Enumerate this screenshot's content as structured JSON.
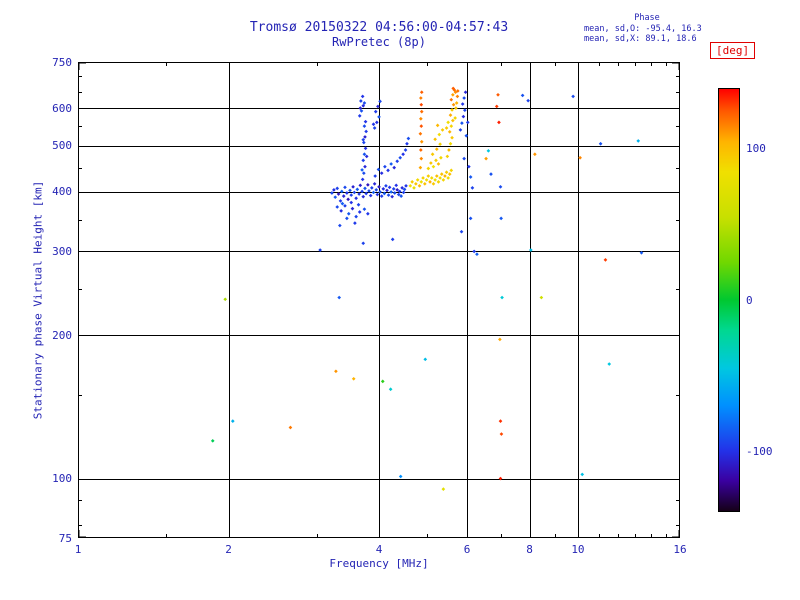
{
  "title": "Tromsø 20150322 04:56:00-04:57:43",
  "subtitle": "RwPretec (8p)",
  "stats": {
    "header": "Phase",
    "line_o": "mean, sd,O: -95.4, 16.3",
    "line_x": "mean, sd,X:  89.1, 18.6"
  },
  "colors": {
    "annotation_text": "#2424b4",
    "axis": "#000000",
    "deg_label": "#e00000",
    "background": "#ffffff"
  },
  "chart_data": {
    "type": "scatter",
    "title": "Tromsø 20150322 04:56:00-04:57:43",
    "subtitle": "RwPretec (8p)",
    "xlabel": "Frequency [MHz]",
    "ylabel": "Stationary phase Virtual Height [km]",
    "x_scale": "log",
    "y_scale": "log",
    "xlim": [
      1,
      16
    ],
    "ylim": [
      75,
      750
    ],
    "x_major_ticks": [
      1,
      2,
      4,
      6,
      8,
      10,
      16
    ],
    "x_grid": [
      2,
      4,
      6,
      8,
      10
    ],
    "x_minor_ticks": [
      1.5,
      3,
      5,
      7,
      9,
      11,
      12,
      13,
      14,
      15
    ],
    "y_major_ticks": [
      75,
      100,
      200,
      300,
      400,
      500,
      600,
      750
    ],
    "y_grid": [
      100,
      200,
      300,
      400,
      500,
      600
    ],
    "y_minor_ticks": [
      80,
      90,
      150,
      250,
      350,
      450,
      550,
      650,
      700
    ],
    "grid": true,
    "colorbar": {
      "label": "[deg]",
      "min": -140,
      "max": 140,
      "tick_values": [
        100,
        0,
        -100
      ],
      "stops": [
        [
          -140,
          "#150018"
        ],
        [
          -120,
          "#3a00a0"
        ],
        [
          -100,
          "#2332e8"
        ],
        [
          -70,
          "#0090ff"
        ],
        [
          -45,
          "#00c8e0"
        ],
        [
          -20,
          "#00d890"
        ],
        [
          0,
          "#00c830"
        ],
        [
          25,
          "#70d800"
        ],
        [
          55,
          "#c8e000"
        ],
        [
          85,
          "#f0e000"
        ],
        [
          105,
          "#ffb400"
        ],
        [
          125,
          "#ff5a00"
        ],
        [
          140,
          "#ff0000"
        ]
      ]
    },
    "points_format": [
      "freq_mhz",
      "height_km",
      "phase_deg"
    ],
    "points": [
      [
        3.22,
        398,
        -92
      ],
      [
        3.25,
        404,
        -101
      ],
      [
        3.27,
        390,
        -88
      ],
      [
        3.3,
        407,
        -95
      ],
      [
        3.32,
        396,
        -110
      ],
      [
        3.35,
        383,
        -97
      ],
      [
        3.37,
        401,
        -85
      ],
      [
        3.4,
        392,
        -104
      ],
      [
        3.42,
        409,
        -93
      ],
      [
        3.45,
        398,
        -99
      ],
      [
        3.47,
        386,
        -112
      ],
      [
        3.5,
        403,
        -90
      ],
      [
        3.52,
        394,
        -96
      ],
      [
        3.55,
        410,
        -106
      ],
      [
        3.57,
        399,
        -94
      ],
      [
        3.6,
        388,
        -101
      ],
      [
        3.62,
        405,
        -87
      ],
      [
        3.65,
        396,
        -98
      ],
      [
        3.67,
        413,
        -108
      ],
      [
        3.7,
        401,
        -95
      ],
      [
        3.72,
        391,
        -103
      ],
      [
        3.75,
        407,
        -89
      ],
      [
        3.77,
        397,
        -97
      ],
      [
        3.8,
        414,
        -111
      ],
      [
        3.82,
        402,
        -92
      ],
      [
        3.85,
        393,
        -100
      ],
      [
        3.87,
        408,
        -96
      ],
      [
        3.9,
        399,
        -86
      ],
      [
        3.92,
        416,
        -105
      ],
      [
        3.95,
        404,
        -93
      ],
      [
        3.97,
        395,
        -99
      ],
      [
        4.0,
        410,
        -109
      ],
      [
        4.02,
        400,
        -91
      ],
      [
        4.05,
        392,
        -97
      ],
      [
        4.08,
        406,
        -102
      ],
      [
        4.1,
        397,
        -88
      ],
      [
        4.13,
        412,
        -95
      ],
      [
        4.15,
        403,
        -107
      ],
      [
        4.18,
        394,
        -93
      ],
      [
        4.2,
        409,
        -99
      ],
      [
        4.23,
        400,
        -85
      ],
      [
        4.25,
        391,
        -104
      ],
      [
        4.28,
        406,
        -96
      ],
      [
        4.3,
        398,
        -92
      ],
      [
        4.33,
        413,
        -100
      ],
      [
        4.35,
        404,
        -110
      ],
      [
        4.38,
        395,
        -94
      ],
      [
        4.4,
        401,
        -98
      ],
      [
        4.43,
        392,
        -89
      ],
      [
        4.45,
        408,
        -103
      ],
      [
        4.48,
        399,
        -96
      ],
      [
        4.5,
        405,
        -91
      ],
      [
        4.53,
        412,
        -99
      ],
      [
        3.3,
        372,
        -93
      ],
      [
        3.36,
        365,
        -102
      ],
      [
        3.42,
        374,
        -96
      ],
      [
        3.48,
        360,
        -88
      ],
      [
        3.54,
        369,
        -105
      ],
      [
        3.6,
        355,
        -94
      ],
      [
        3.66,
        363,
        -99
      ],
      [
        3.45,
        352,
        -91
      ],
      [
        3.58,
        344,
        -97
      ],
      [
        3.38,
        378,
        -86
      ],
      [
        3.52,
        380,
        -100
      ],
      [
        3.64,
        376,
        -95
      ],
      [
        3.74,
        368,
        -90
      ],
      [
        3.8,
        360,
        -98
      ],
      [
        3.34,
        340,
        -93
      ],
      [
        3.72,
        312,
        -95
      ],
      [
        3.33,
        240,
        -88
      ],
      [
        3.71,
        425,
        -99
      ],
      [
        3.73,
        438,
        -92
      ],
      [
        3.75,
        452,
        -104
      ],
      [
        3.72,
        466,
        -96
      ],
      [
        3.74,
        480,
        -89
      ],
      [
        3.76,
        494,
        -101
      ],
      [
        3.73,
        508,
        -94
      ],
      [
        3.75,
        522,
        -107
      ],
      [
        3.77,
        536,
        -97
      ],
      [
        3.74,
        550,
        -92
      ],
      [
        3.76,
        562,
        -100
      ],
      [
        3.7,
        445,
        -86
      ],
      [
        3.78,
        475,
        -103
      ],
      [
        3.72,
        515,
        -95
      ],
      [
        3.66,
        578,
        -97
      ],
      [
        3.69,
        592,
        -90
      ],
      [
        3.72,
        607,
        -103
      ],
      [
        3.68,
        621,
        -95
      ],
      [
        3.71,
        635,
        -99
      ],
      [
        3.74,
        615,
        -92
      ],
      [
        3.67,
        600,
        -106
      ],
      [
        3.92,
        545,
        -94
      ],
      [
        3.96,
        560,
        -101
      ],
      [
        4.0,
        575,
        -89
      ],
      [
        3.94,
        590,
        -97
      ],
      [
        3.98,
        605,
        -105
      ],
      [
        4.02,
        620,
        -93
      ],
      [
        3.9,
        555,
        -99
      ],
      [
        3.93,
        432,
        -96
      ],
      [
        3.99,
        446,
        -90
      ],
      [
        4.05,
        438,
        -102
      ],
      [
        4.11,
        452,
        -94
      ],
      [
        4.17,
        444,
        -99
      ],
      [
        4.23,
        458,
        -87
      ],
      [
        4.29,
        450,
        -104
      ],
      [
        4.35,
        464,
        -96
      ],
      [
        4.41,
        472,
        -92
      ],
      [
        4.47,
        480,
        -100
      ],
      [
        4.52,
        490,
        -95
      ],
      [
        4.55,
        505,
        -97
      ],
      [
        4.58,
        518,
        -91
      ],
      [
        4.26,
        318,
        -96
      ],
      [
        4.62,
        412,
        85
      ],
      [
        4.66,
        420,
        93
      ],
      [
        4.7,
        408,
        78
      ],
      [
        4.74,
        416,
        97
      ],
      [
        4.78,
        424,
        88
      ],
      [
        4.82,
        412,
        102
      ],
      [
        4.86,
        420,
        83
      ],
      [
        4.9,
        428,
        91
      ],
      [
        4.94,
        416,
        99
      ],
      [
        4.98,
        424,
        86
      ],
      [
        5.02,
        432,
        94
      ],
      [
        5.06,
        420,
        105
      ],
      [
        5.1,
        428,
        89
      ],
      [
        5.14,
        416,
        96
      ],
      [
        5.18,
        424,
        81
      ],
      [
        5.22,
        432,
        100
      ],
      [
        5.26,
        420,
        92
      ],
      [
        5.3,
        428,
        87
      ],
      [
        5.34,
        436,
        98
      ],
      [
        5.38,
        424,
        90
      ],
      [
        5.42,
        432,
        103
      ],
      [
        5.46,
        440,
        94
      ],
      [
        5.5,
        428,
        85
      ],
      [
        5.54,
        436,
        99
      ],
      [
        5.58,
        444,
        91
      ],
      [
        4.84,
        450,
        108
      ],
      [
        4.86,
        470,
        115
      ],
      [
        4.85,
        490,
        122
      ],
      [
        4.87,
        510,
        112
      ],
      [
        4.84,
        530,
        119
      ],
      [
        4.86,
        550,
        126
      ],
      [
        4.85,
        570,
        114
      ],
      [
        4.87,
        590,
        121
      ],
      [
        4.86,
        610,
        128
      ],
      [
        4.85,
        630,
        117
      ],
      [
        4.87,
        648,
        124
      ],
      [
        5.02,
        448,
        90
      ],
      [
        5.08,
        460,
        97
      ],
      [
        5.14,
        452,
        85
      ],
      [
        5.2,
        466,
        94
      ],
      [
        5.26,
        458,
        101
      ],
      [
        5.32,
        472,
        89
      ],
      [
        5.12,
        480,
        96
      ],
      [
        5.22,
        492,
        104
      ],
      [
        5.3,
        504,
        92
      ],
      [
        5.18,
        516,
        99
      ],
      [
        5.28,
        528,
        87
      ],
      [
        5.36,
        540,
        95
      ],
      [
        5.24,
        552,
        103
      ],
      [
        5.48,
        475,
        93
      ],
      [
        5.52,
        490,
        100
      ],
      [
        5.56,
        505,
        88
      ],
      [
        5.6,
        520,
        96
      ],
      [
        5.54,
        535,
        104
      ],
      [
        5.58,
        550,
        91
      ],
      [
        5.62,
        565,
        99
      ],
      [
        5.56,
        580,
        107
      ],
      [
        5.6,
        595,
        94
      ],
      [
        5.64,
        610,
        112
      ],
      [
        5.58,
        625,
        119
      ],
      [
        5.62,
        640,
        109
      ],
      [
        5.66,
        655,
        121
      ],
      [
        5.7,
        600,
        97
      ],
      [
        5.68,
        572,
        90
      ],
      [
        5.72,
        615,
        105
      ],
      [
        5.74,
        635,
        116
      ],
      [
        5.5,
        560,
        86
      ],
      [
        5.46,
        545,
        95
      ],
      [
        5.63,
        660,
        124
      ],
      [
        5.69,
        648,
        113
      ],
      [
        5.75,
        652,
        120
      ],
      [
        5.82,
        540,
        -96
      ],
      [
        5.86,
        558,
        -89
      ],
      [
        5.9,
        576,
        -102
      ],
      [
        5.94,
        594,
        -94
      ],
      [
        5.88,
        612,
        -99
      ],
      [
        5.92,
        630,
        -92
      ],
      [
        5.96,
        648,
        -105
      ],
      [
        5.98,
        525,
        -90
      ],
      [
        6.02,
        560,
        -97
      ],
      [
        5.92,
        470,
        -93
      ],
      [
        6.05,
        452,
        -98
      ],
      [
        6.1,
        430,
        -88
      ],
      [
        6.15,
        408,
        -95
      ],
      [
        5.85,
        330,
        -94
      ],
      [
        6.1,
        352,
        -90
      ],
      [
        6.2,
        300,
        -97
      ],
      [
        6.28,
        296,
        -85
      ],
      [
        1.97,
        238,
        45
      ],
      [
        1.86,
        120,
        -8
      ],
      [
        2.04,
        132,
        -55
      ],
      [
        2.66,
        128,
        118
      ],
      [
        3.28,
        168,
        112
      ],
      [
        3.56,
        162,
        105
      ],
      [
        3.05,
        302,
        -95
      ],
      [
        4.07,
        160,
        10
      ],
      [
        4.22,
        154,
        -40
      ],
      [
        4.42,
        101,
        -70
      ],
      [
        4.95,
        178,
        -50
      ],
      [
        5.38,
        95,
        75
      ],
      [
        6.62,
        488,
        -45
      ],
      [
        6.55,
        470,
        110
      ],
      [
        6.7,
        436,
        -90
      ],
      [
        6.88,
        605,
        130
      ],
      [
        6.92,
        640,
        125
      ],
      [
        6.95,
        560,
        135
      ],
      [
        7.0,
        410,
        -92
      ],
      [
        7.02,
        352,
        -88
      ],
      [
        7.05,
        240,
        -42
      ],
      [
        6.98,
        196,
        108
      ],
      [
        7.0,
        132,
        132
      ],
      [
        7.03,
        124,
        128
      ],
      [
        7.0,
        100,
        135
      ],
      [
        7.75,
        638,
        -90
      ],
      [
        7.95,
        622,
        -95
      ],
      [
        8.2,
        480,
        112
      ],
      [
        8.05,
        302,
        -50
      ],
      [
        8.45,
        240,
        60
      ],
      [
        9.78,
        635,
        -92
      ],
      [
        10.1,
        472,
        115
      ],
      [
        10.2,
        102,
        -48
      ],
      [
        11.1,
        505,
        -90
      ],
      [
        11.35,
        288,
        130
      ],
      [
        11.55,
        174,
        -45
      ],
      [
        13.2,
        512,
        -55
      ],
      [
        13.4,
        298,
        -88
      ]
    ]
  }
}
